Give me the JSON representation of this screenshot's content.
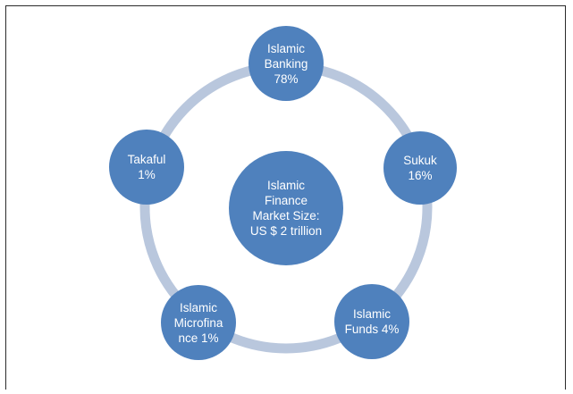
{
  "center": {
    "label": "Islamic\nFinance\nMarket Size:\nUS $ 2 trillion"
  },
  "nodes": [
    {
      "id": "islamic-banking",
      "label": "Islamic\nBanking\n78%"
    },
    {
      "id": "sukuk",
      "label": "Sukuk\n16%"
    },
    {
      "id": "islamic-funds",
      "label": "Islamic\nFunds 4%"
    },
    {
      "id": "islamic-microfinance",
      "label": "Islamic\nMicrofina\nnce 1%"
    },
    {
      "id": "takaful",
      "label": "Takaful\n1%"
    }
  ],
  "colors": {
    "node_fill": "#4f81bd",
    "ring": "#b9c7dd",
    "text": "#ffffff",
    "frame_border": "#2b2b2b"
  }
}
